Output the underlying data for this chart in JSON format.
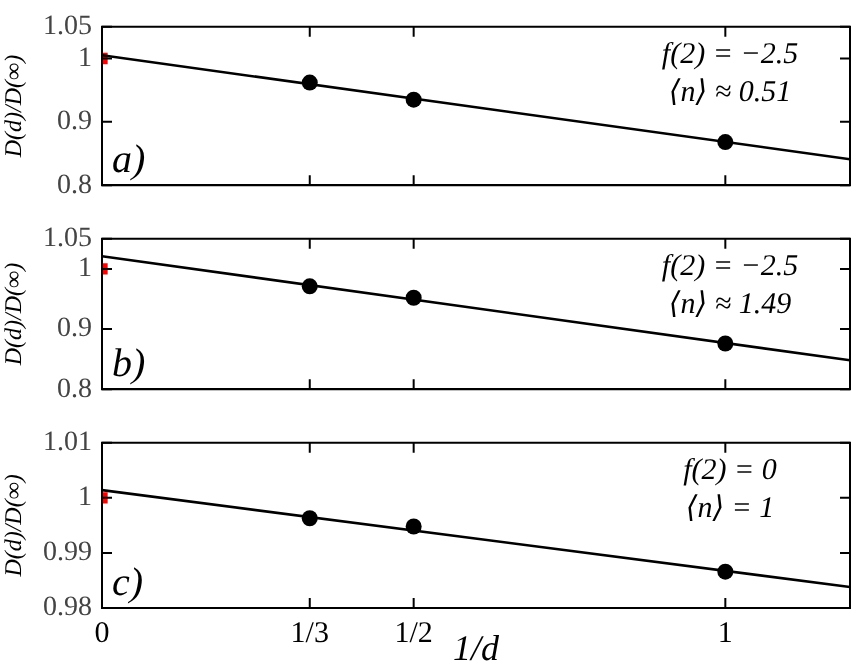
{
  "chart_data": [
    {
      "type": "scatter",
      "ylabel": "D(d)/D(∞)",
      "xlim": [
        0,
        1.2
      ],
      "xticks": [
        {
          "value": 0,
          "label": null
        },
        {
          "value": 0.3333,
          "label": null
        },
        {
          "value": 0.5,
          "label": null
        },
        {
          "value": 1,
          "label": null
        }
      ],
      "ylim": [
        0.8,
        1.05
      ],
      "yticks": [
        0.8,
        0.9,
        1,
        1.05
      ],
      "tick_labels": "y",
      "legend": false,
      "grid": false,
      "annotations": [
        "f(2) = −2.5",
        "⟨n⟩ ≈ 0.51",
        "a)"
      ],
      "series": [
        {
          "type": "line",
          "color": "#000000",
          "marker": "none",
          "x": [
            0,
            1.2
          ],
          "values": [
            1.005,
            0.841
          ]
        },
        {
          "color": "#000000",
          "marker": "circle",
          "x": [
            0.3333,
            0.5,
            1
          ],
          "values": [
            0.962,
            0.935,
            0.868
          ]
        },
        {
          "color": "#ff0000",
          "marker": "square",
          "x": [
            0
          ],
          "values": [
            1.0
          ]
        }
      ]
    },
    {
      "type": "scatter",
      "ylabel": "D(d)/D(∞)",
      "xlim": [
        0,
        1.2
      ],
      "xticks": [
        {
          "value": 0,
          "label": null
        },
        {
          "value": 0.3333,
          "label": null
        },
        {
          "value": 0.5,
          "label": null
        },
        {
          "value": 1,
          "label": null
        }
      ],
      "ylim": [
        0.8,
        1.05
      ],
      "yticks": [
        0.8,
        0.9,
        1,
        1.05
      ],
      "tick_labels": "y",
      "legend": false,
      "grid": false,
      "annotations": [
        "f(2) = −2.5",
        "⟨n⟩ ≈ 1.49",
        "b)"
      ],
      "series": [
        {
          "type": "line",
          "color": "#000000",
          "marker": "none",
          "x": [
            0,
            1.2
          ],
          "values": [
            1.021,
            0.848
          ]
        },
        {
          "color": "#000000",
          "marker": "circle",
          "x": [
            0.3333,
            0.5,
            1
          ],
          "values": [
            0.971,
            0.952,
            0.876
          ]
        },
        {
          "color": "#ff0000",
          "marker": "square",
          "x": [
            0
          ],
          "values": [
            1.0
          ]
        }
      ]
    },
    {
      "type": "scatter",
      "ylabel": "D(d)/D(∞)",
      "xlabel": "1/d",
      "xlim": [
        0,
        1.2
      ],
      "xticks": [
        0,
        {
          "value": 0.3333,
          "label": "1/3"
        },
        {
          "value": 0.5,
          "label": "1/2"
        },
        1
      ],
      "ylim": [
        0.98,
        1.01
      ],
      "yticks": [
        0.98,
        0.99,
        1,
        1.01
      ],
      "legend": false,
      "grid": false,
      "annotations": [
        "f(2) = 0",
        "⟨n⟩ = 1",
        "c)"
      ],
      "series": [
        {
          "type": "line",
          "color": "#000000",
          "marker": "none",
          "x": [
            0,
            1.2
          ],
          "values": [
            1.0014,
            0.9838
          ]
        },
        {
          "color": "#000000",
          "marker": "circle",
          "x": [
            0.3333,
            0.5,
            1
          ],
          "values": [
            0.9963,
            0.9948,
            0.9866
          ]
        },
        {
          "color": "#ff0000",
          "marker": "square",
          "x": [
            0
          ],
          "values": [
            1.0
          ]
        }
      ]
    }
  ]
}
